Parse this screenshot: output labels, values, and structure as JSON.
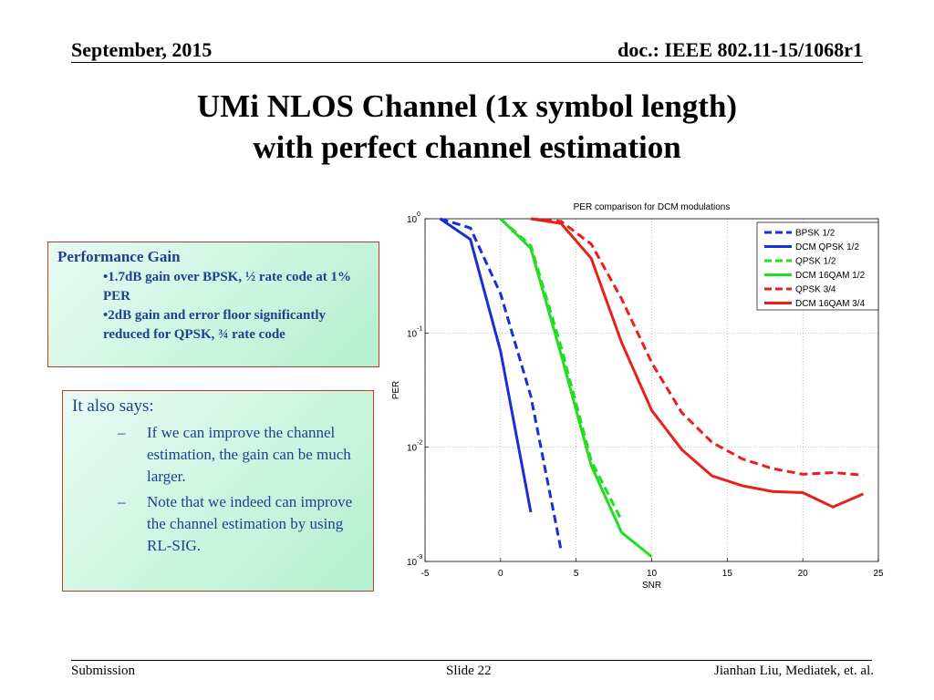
{
  "header": {
    "date": "September, 2015",
    "doc": "doc.: IEEE 802.11-15/1068r1"
  },
  "title": [
    "UMi NLOS Channel (1x symbol length)",
    "with perfect channel estimation"
  ],
  "box1": {
    "title": "Performance Gain",
    "items": [
      "•1.7dB gain over BPSK, ½ rate code at 1% PER",
      "•2dB gain and error floor  significantly reduced for QPSK, ¾ rate code"
    ]
  },
  "box2": {
    "title": "It also says:",
    "items": [
      "If we can improve the channel estimation, the gain can be much larger.",
      "Note that we indeed can improve the channel estimation by using RL-SIG."
    ]
  },
  "footer": {
    "left": "Submission",
    "center": "Slide 22",
    "right": "Jianhan Liu,  Mediatek, et. al."
  },
  "chart_data": {
    "type": "line",
    "title": "PER comparison for DCM modulations",
    "xlabel": "SNR",
    "ylabel": "PER",
    "xlim": [
      -5,
      25
    ],
    "xticks": [
      -5,
      0,
      5,
      10,
      15,
      20,
      25
    ],
    "ylim": [
      0.001,
      1
    ],
    "ylog": true,
    "yticks": [
      {
        "value": 1,
        "label": "10",
        "sup": "0"
      },
      {
        "value": 0.1,
        "label": "10",
        "sup": "-1"
      },
      {
        "value": 0.01,
        "label": "10",
        "sup": "-2"
      },
      {
        "value": 0.001,
        "label": "10",
        "sup": "-3"
      }
    ],
    "grid": true,
    "legend": "upper right",
    "series": [
      {
        "name": "BPSK 1/2",
        "color": "#1a2ed8",
        "dash": true,
        "x": [
          -4,
          -2,
          0,
          2,
          4
        ],
        "values": [
          1,
          0.83,
          0.22,
          0.028,
          0.00126
        ]
      },
      {
        "name": "DCM QPSK 1/2",
        "color": "#1a2ed8",
        "dash": false,
        "x": [
          -4,
          -2,
          0,
          2
        ],
        "values": [
          1,
          0.66,
          0.069,
          0.0027
        ]
      },
      {
        "name": "QPSK 1/2",
        "color": "#22dd22",
        "dash": true,
        "x": [
          0,
          2,
          4,
          6,
          8
        ],
        "values": [
          1,
          0.58,
          0.076,
          0.0076,
          0.0023
        ]
      },
      {
        "name": "DCM 16QAM 1/2",
        "color": "#22dd22",
        "dash": false,
        "x": [
          0,
          2,
          4,
          6,
          8,
          10
        ],
        "values": [
          1,
          0.55,
          0.065,
          0.0069,
          0.0018,
          0.0011
        ]
      },
      {
        "name": "QPSK 3/4",
        "color": "#e8201c",
        "dash": true,
        "x": [
          2,
          4,
          6,
          8,
          10,
          12,
          14,
          16,
          18,
          20,
          22,
          24
        ],
        "values": [
          1,
          0.95,
          0.6,
          0.2,
          0.055,
          0.02,
          0.011,
          0.0079,
          0.0065,
          0.0058,
          0.006,
          0.0057
        ]
      },
      {
        "name": "DCM 16QAM 3/4",
        "color": "#e8201c",
        "dash": false,
        "x": [
          2,
          4,
          6,
          8,
          10,
          12,
          14,
          16,
          18,
          20,
          22,
          24
        ],
        "values": [
          1,
          0.91,
          0.45,
          0.083,
          0.021,
          0.0095,
          0.0056,
          0.0046,
          0.0041,
          0.004,
          0.003,
          0.0039
        ]
      }
    ]
  }
}
